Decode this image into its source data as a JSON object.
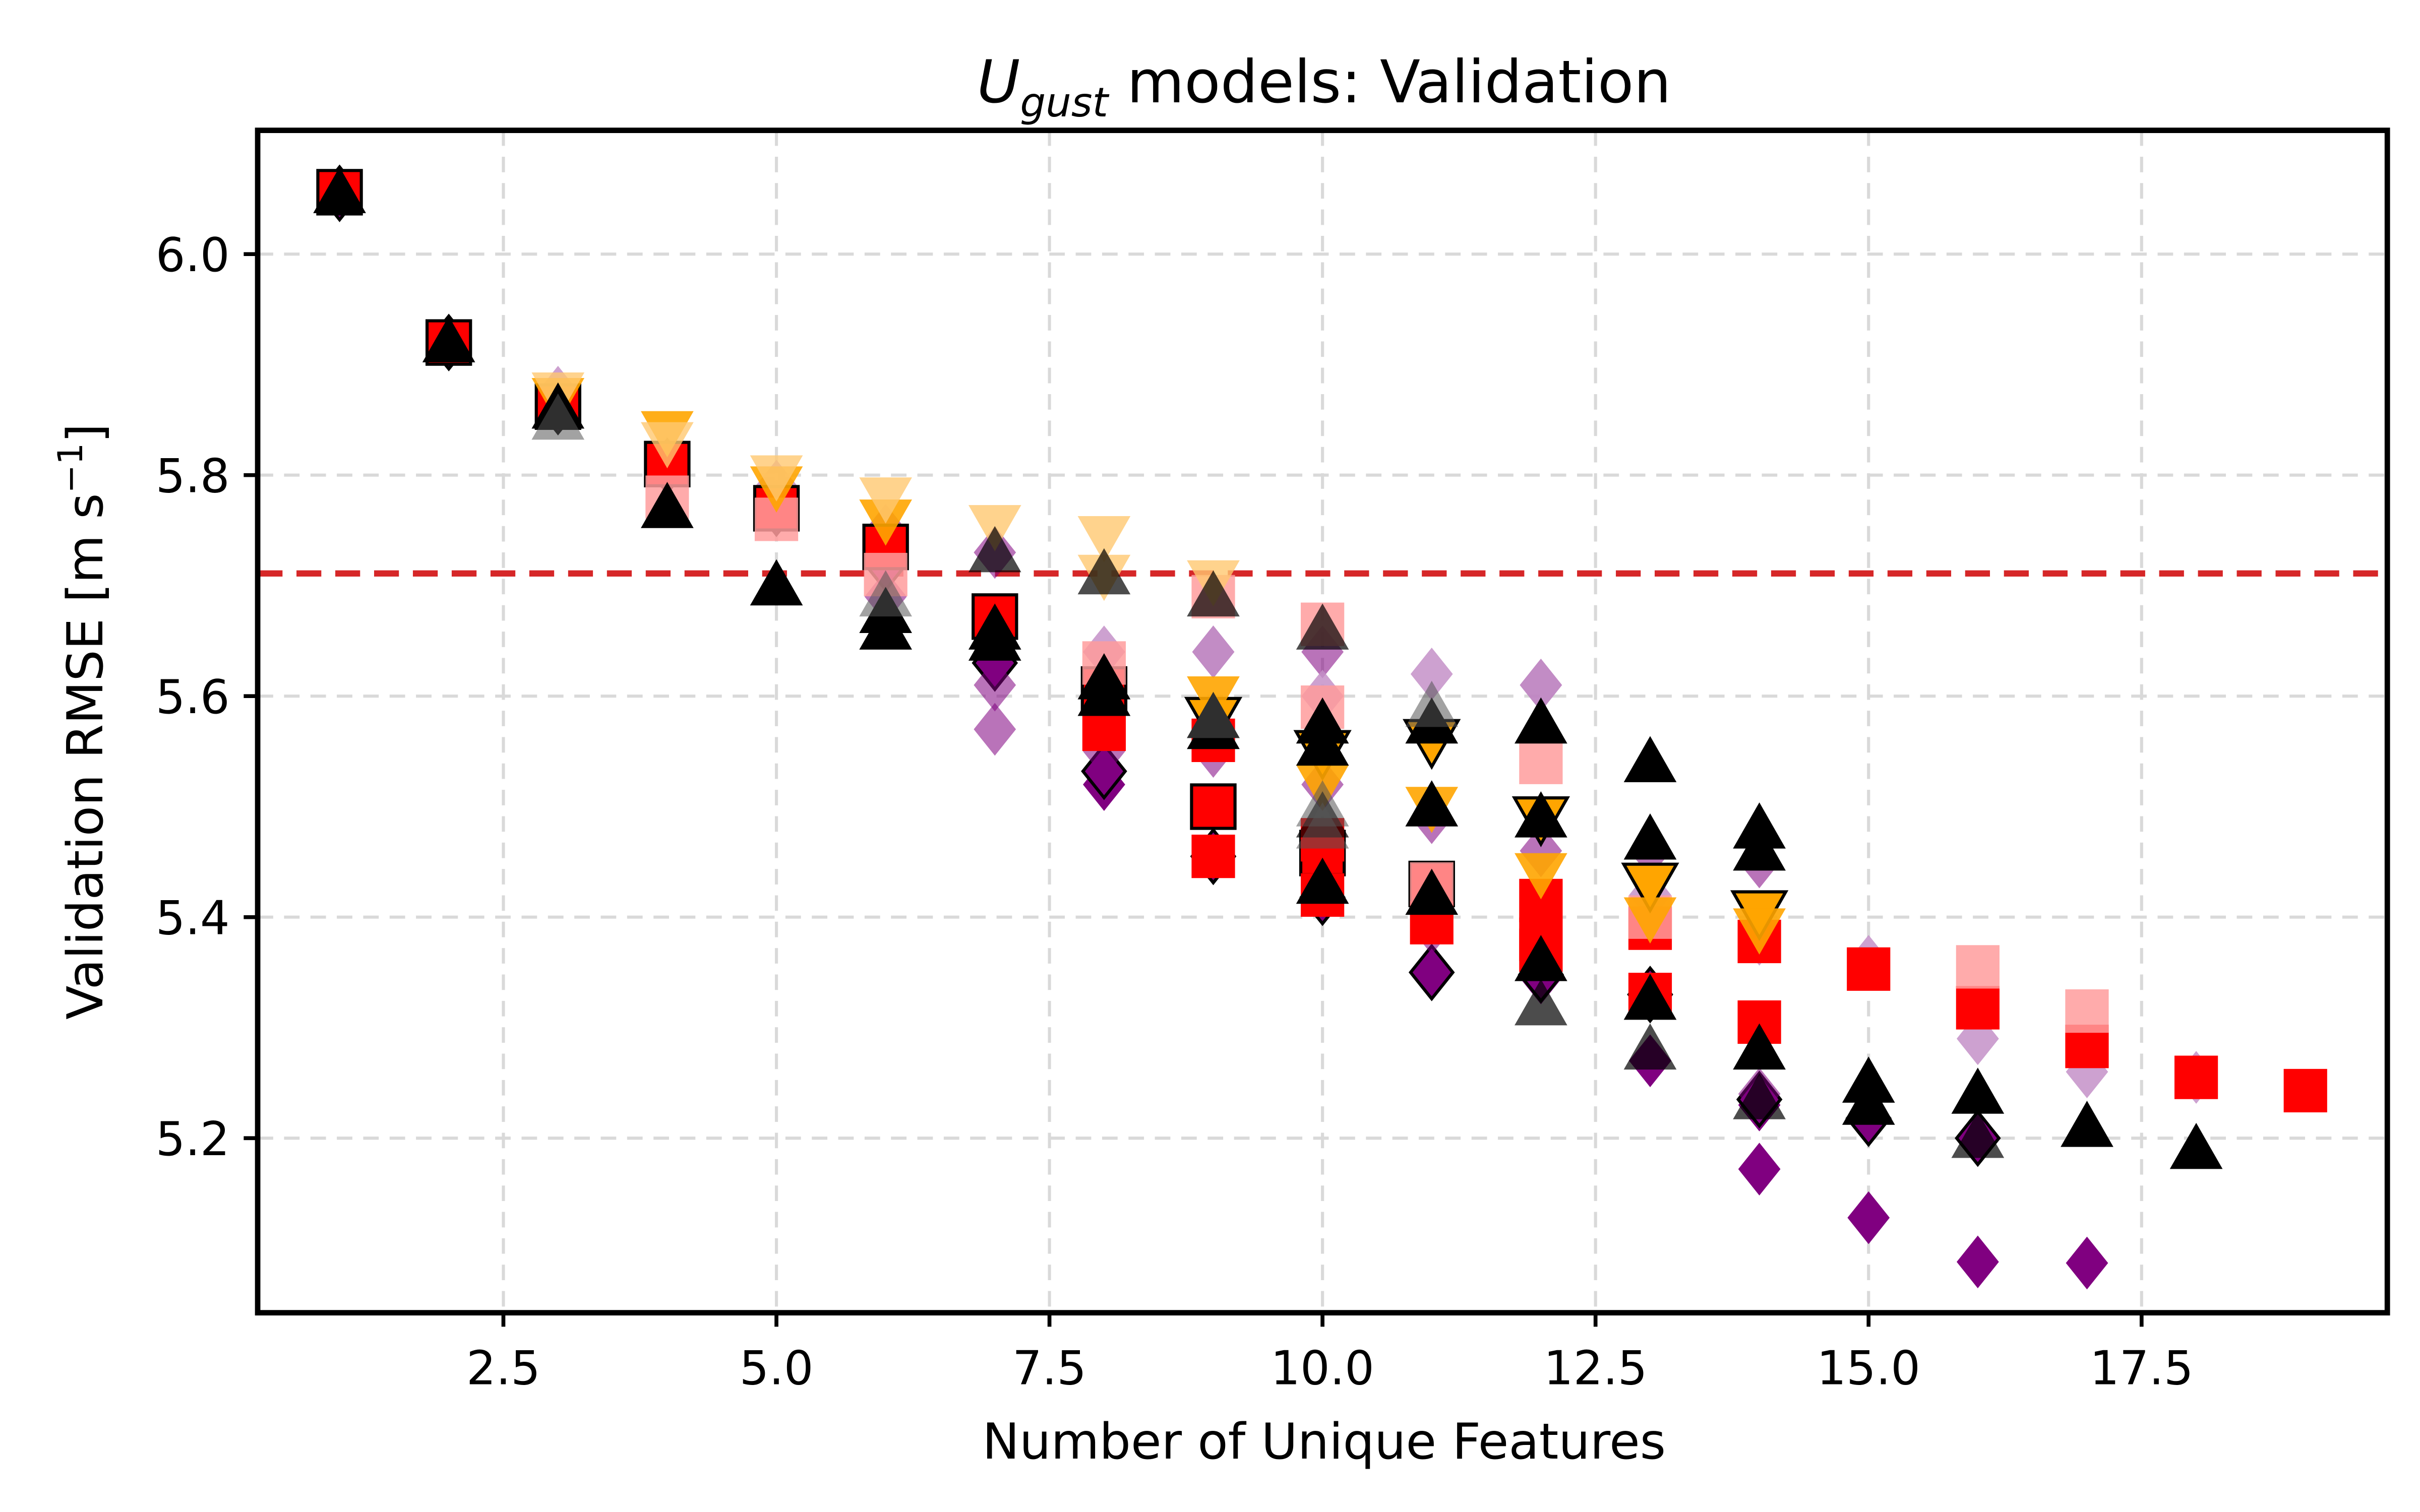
{
  "chart_data": {
    "type": "scatter",
    "title_main": "U",
    "title_sub": "gust",
    "title_rest": " models: Validation",
    "xlabel": "Number of Unique Features",
    "ylabel_main": "Validation RMSE [m s",
    "ylabel_sup": "−1",
    "ylabel_end": "]",
    "xlim": [
      0.25,
      19.75
    ],
    "ylim": [
      5.042,
      6.112
    ],
    "xticks": [
      2.5,
      5.0,
      7.5,
      10.0,
      12.5,
      15.0,
      17.5
    ],
    "xtick_labels": [
      "2.5",
      "5.0",
      "7.5",
      "10.0",
      "12.5",
      "15.0",
      "17.5"
    ],
    "yticks": [
      5.2,
      5.4,
      5.6,
      5.8,
      6.0
    ],
    "ytick_labels": [
      "5.2",
      "5.4",
      "5.6",
      "5.8",
      "6.0"
    ],
    "grid": true,
    "reference_line": {
      "y": 5.711,
      "color": "#d62728",
      "style": "dashed"
    },
    "colors": {
      "purple": "#800080",
      "light_purple": "#c490c8",
      "orange": "#ffa500",
      "light_orange": "#ffc870",
      "red": "#ff0000",
      "pink": "#ff9c9c",
      "black": "#000000",
      "gray": "#555555"
    },
    "series": [
      {
        "marker": "diamond",
        "fill": "purple",
        "edge": "none",
        "alpha": 1.0,
        "points": [
          [
            14,
            5.172
          ],
          [
            15,
            5.128
          ],
          [
            16,
            5.088
          ],
          [
            17,
            5.087
          ],
          [
            11,
            5.35
          ],
          [
            12,
            5.345
          ],
          [
            13,
            5.27
          ],
          [
            9,
            5.455
          ],
          [
            8,
            5.52
          ],
          [
            16,
            5.2
          ],
          [
            15,
            5.22
          ],
          [
            14,
            5.23
          ]
        ]
      },
      {
        "marker": "diamond",
        "fill": "purple",
        "edge": "black",
        "alpha": 1.0,
        "points": [
          [
            1,
            6.055
          ],
          [
            2,
            5.92
          ],
          [
            3,
            5.862
          ],
          [
            4,
            5.808
          ],
          [
            5,
            5.77
          ],
          [
            6,
            5.72
          ],
          [
            7,
            5.63
          ],
          [
            8,
            5.532
          ],
          [
            9,
            5.455
          ],
          [
            10,
            5.418
          ],
          [
            11,
            5.35
          ],
          [
            12,
            5.348
          ],
          [
            13,
            5.33
          ],
          [
            14,
            5.235
          ],
          [
            15,
            5.218
          ],
          [
            16,
            5.2
          ]
        ]
      },
      {
        "marker": "diamond",
        "fill": "purple",
        "edge": "none",
        "alpha": 0.55,
        "points": [
          [
            7,
            5.61
          ],
          [
            7,
            5.57
          ],
          [
            8,
            5.55
          ],
          [
            9,
            5.64
          ],
          [
            9,
            5.55
          ],
          [
            10,
            5.52
          ],
          [
            11,
            5.49
          ],
          [
            11,
            5.39
          ],
          [
            12,
            5.46
          ],
          [
            12,
            5.61
          ],
          [
            13,
            5.46
          ],
          [
            14,
            5.45
          ],
          [
            14,
            5.24
          ],
          [
            15,
            5.24
          ],
          [
            10,
            5.64
          ],
          [
            6,
            5.75
          ],
          [
            6,
            5.69
          ],
          [
            7,
            5.73
          ]
        ]
      },
      {
        "marker": "diamond",
        "fill": "light_purple",
        "edge": "none",
        "alpha": 0.85,
        "points": [
          [
            11,
            5.62
          ],
          [
            12,
            5.61
          ],
          [
            14,
            5.38
          ],
          [
            15,
            5.36
          ],
          [
            16,
            5.29
          ],
          [
            17,
            5.26
          ],
          [
            18,
            5.255
          ],
          [
            9,
            5.64
          ],
          [
            10,
            5.6
          ],
          [
            8,
            5.64
          ],
          [
            13,
            5.42
          ],
          [
            3,
            5.875
          ],
          [
            5,
            5.79
          ]
        ]
      },
      {
        "marker": "square",
        "fill": "red",
        "edge": "black",
        "alpha": 1.0,
        "points": [
          [
            1,
            6.056
          ],
          [
            2,
            5.92
          ],
          [
            3,
            5.862
          ],
          [
            4,
            5.81
          ],
          [
            5,
            5.77
          ],
          [
            6,
            5.735
          ],
          [
            7,
            5.672
          ],
          [
            8,
            5.606
          ],
          [
            9,
            5.5
          ],
          [
            10,
            5.458
          ],
          [
            11,
            5.43
          ]
        ]
      },
      {
        "marker": "square",
        "fill": "red",
        "edge": "none",
        "alpha": 1.0,
        "points": [
          [
            12,
            5.415
          ],
          [
            13,
            5.39
          ],
          [
            14,
            5.378
          ],
          [
            14,
            5.305
          ],
          [
            15,
            5.353
          ],
          [
            16,
            5.318
          ],
          [
            17,
            5.283
          ],
          [
            18,
            5.255
          ],
          [
            19,
            5.243
          ],
          [
            13,
            5.33
          ],
          [
            12,
            5.37
          ],
          [
            11,
            5.395
          ],
          [
            10,
            5.42
          ],
          [
            9,
            5.455
          ],
          [
            8,
            5.57
          ],
          [
            9,
            5.56
          ],
          [
            10,
            5.47
          ],
          [
            12,
            5.38
          ]
        ]
      },
      {
        "marker": "square",
        "fill": "pink",
        "edge": "none",
        "alpha": 0.85,
        "points": [
          [
            16,
            5.355
          ],
          [
            17,
            5.315
          ],
          [
            10,
            5.665
          ],
          [
            10,
            5.59
          ],
          [
            8,
            5.63
          ],
          [
            12,
            5.54
          ],
          [
            13,
            5.4
          ],
          [
            11,
            5.43
          ],
          [
            9,
            5.69
          ],
          [
            4,
            5.78
          ],
          [
            5,
            5.76
          ],
          [
            6,
            5.71
          ]
        ]
      },
      {
        "marker": "triangle_down",
        "fill": "orange",
        "edge": "black",
        "alpha": 1.0,
        "points": [
          [
            11,
            5.56
          ],
          [
            12,
            5.49
          ],
          [
            13,
            5.43
          ],
          [
            14,
            5.405
          ],
          [
            10,
            5.55
          ],
          [
            9,
            5.58
          ]
        ]
      },
      {
        "marker": "triangle_down",
        "fill": "orange",
        "edge": "none",
        "alpha": 0.9,
        "points": [
          [
            4,
            5.84
          ],
          [
            5,
            5.79
          ],
          [
            6,
            5.76
          ],
          [
            12,
            5.44
          ],
          [
            13,
            5.4
          ],
          [
            11,
            5.5
          ],
          [
            9,
            5.6
          ],
          [
            10,
            5.52
          ],
          [
            14,
            5.39
          ],
          [
            3,
            5.87
          ]
        ]
      },
      {
        "marker": "triangle_down",
        "fill": "light_orange",
        "edge": "none",
        "alpha": 0.8,
        "points": [
          [
            4,
            5.83
          ],
          [
            5,
            5.8
          ],
          [
            6,
            5.78
          ],
          [
            7,
            5.755
          ],
          [
            8,
            5.745
          ],
          [
            9,
            5.705
          ],
          [
            3,
            5.875
          ],
          [
            8,
            5.71
          ]
        ]
      },
      {
        "marker": "triangle",
        "fill": "black",
        "edge": "none",
        "alpha": 1.0,
        "points": [
          [
            1,
            6.055
          ],
          [
            2,
            5.92
          ],
          [
            3,
            5.86
          ],
          [
            4,
            5.77
          ],
          [
            5,
            5.7
          ],
          [
            6,
            5.66
          ],
          [
            7,
            5.65
          ],
          [
            8,
            5.615
          ],
          [
            9,
            5.58
          ],
          [
            10,
            5.575
          ],
          [
            11,
            5.575
          ],
          [
            12,
            5.575
          ],
          [
            13,
            5.54
          ],
          [
            14,
            5.48
          ],
          [
            13,
            5.47
          ],
          [
            14,
            5.46
          ],
          [
            14,
            5.28
          ],
          [
            15,
            5.23
          ],
          [
            16,
            5.24
          ],
          [
            17,
            5.21
          ],
          [
            18,
            5.19
          ],
          [
            12,
            5.36
          ],
          [
            11,
            5.42
          ],
          [
            10,
            5.43
          ],
          [
            13,
            5.325
          ],
          [
            9,
            5.57
          ],
          [
            10,
            5.555
          ],
          [
            11,
            5.5
          ],
          [
            12,
            5.49
          ],
          [
            6,
            5.675
          ],
          [
            7,
            5.66
          ],
          [
            8,
            5.6
          ],
          [
            15,
            5.25
          ]
        ]
      },
      {
        "marker": "triangle",
        "fill": "black",
        "edge": "none",
        "alpha": 0.7,
        "points": [
          [
            12,
            5.32
          ],
          [
            16,
            5.2
          ],
          [
            14,
            5.235
          ],
          [
            13,
            5.28
          ],
          [
            10,
            5.49
          ],
          [
            8,
            5.71
          ],
          [
            9,
            5.69
          ],
          [
            10,
            5.66
          ],
          [
            7,
            5.73
          ]
        ]
      },
      {
        "marker": "triangle",
        "fill": "gray",
        "edge": "none",
        "alpha": 0.55,
        "points": [
          [
            10,
            5.5
          ],
          [
            10,
            5.48
          ],
          [
            6,
            5.69
          ],
          [
            11,
            5.59
          ],
          [
            9,
            5.58
          ],
          [
            3,
            5.85
          ]
        ]
      }
    ]
  }
}
